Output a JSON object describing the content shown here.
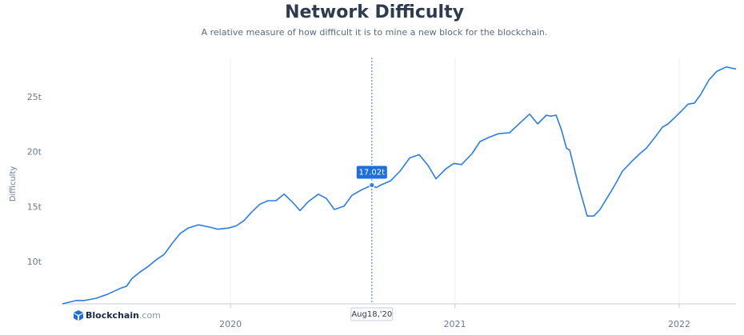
{
  "chart_data": {
    "type": "line",
    "title": "Network Difficulty",
    "subtitle": "A relative measure of how difficult it is to mine a new block for the blockchain.",
    "y_label": "Difficulty",
    "x": [
      2019.251,
      2019.312,
      2019.348,
      2019.401,
      2019.455,
      2019.508,
      2019.537,
      2019.561,
      2019.597,
      2019.633,
      2019.668,
      2019.704,
      2019.74,
      2019.775,
      2019.811,
      2019.857,
      2019.907,
      2019.943,
      2019.989,
      2020.025,
      2020.061,
      2020.096,
      2020.132,
      2020.168,
      2020.203,
      2020.239,
      2020.275,
      2020.31,
      2020.346,
      2020.392,
      2020.428,
      2020.463,
      2020.506,
      2020.542,
      2020.585,
      2020.63,
      2020.649,
      2020.677,
      2020.713,
      2020.756,
      2020.799,
      2020.841,
      2020.881,
      2020.916,
      2020.959,
      2020.995,
      2021.03,
      2021.077,
      2021.112,
      2021.155,
      2021.194,
      2021.244,
      2021.291,
      2021.333,
      2021.369,
      2021.408,
      2021.426,
      2021.451,
      2021.476,
      2021.497,
      2021.512,
      2021.547,
      2021.59,
      2021.619,
      2021.647,
      2021.683,
      2021.718,
      2021.747,
      2021.79,
      2021.825,
      2021.854,
      2021.889,
      2021.925,
      2021.95,
      2021.986,
      2022.011,
      2022.039,
      2022.068,
      2022.096,
      2022.132,
      2022.168,
      2022.21,
      2022.253
    ],
    "series": [
      {
        "name": "Difficulty",
        "color": "#2b7de9",
        "values": [
          6.2,
          6.5,
          6.5,
          6.7,
          7.1,
          7.6,
          7.8,
          8.5,
          9.1,
          9.6,
          10.2,
          10.7,
          11.7,
          12.6,
          13.1,
          13.4,
          13.2,
          13.0,
          13.1,
          13.3,
          13.8,
          14.6,
          15.3,
          15.6,
          15.6,
          16.2,
          15.5,
          14.7,
          15.5,
          16.2,
          15.8,
          14.8,
          15.1,
          16.1,
          16.6,
          17.02,
          16.8,
          17.1,
          17.4,
          18.3,
          19.5,
          19.8,
          18.8,
          17.6,
          18.5,
          19.0,
          18.9,
          19.9,
          21.0,
          21.4,
          21.7,
          21.8,
          22.7,
          23.5,
          22.6,
          23.4,
          23.3,
          23.4,
          22.0,
          20.4,
          20.2,
          17.3,
          14.2,
          14.2,
          14.8,
          16.0,
          17.2,
          18.3,
          19.2,
          19.9,
          20.4,
          21.3,
          22.3,
          22.6,
          23.3,
          23.8,
          24.4,
          24.5,
          25.3,
          26.6,
          27.4,
          27.8,
          27.6
        ]
      }
    ],
    "xlim": [
      2019.251,
      2022.253
    ],
    "xticks": [
      2020,
      2021,
      2022
    ],
    "ylim": [
      6.2,
      28.65
    ],
    "yticks": [
      {
        "value": 10,
        "label": "10t"
      },
      {
        "value": 15,
        "label": "15t"
      },
      {
        "value": 20,
        "label": "20t"
      },
      {
        "value": 25,
        "label": "25t"
      }
    ],
    "grid": "x",
    "tooltip": {
      "x": 2020.63,
      "y": 17.02,
      "label": "17.02t",
      "x_label": "Aug18,'20"
    },
    "watermark": {
      "brand": "Blockchain",
      "suffix": ".com"
    }
  }
}
